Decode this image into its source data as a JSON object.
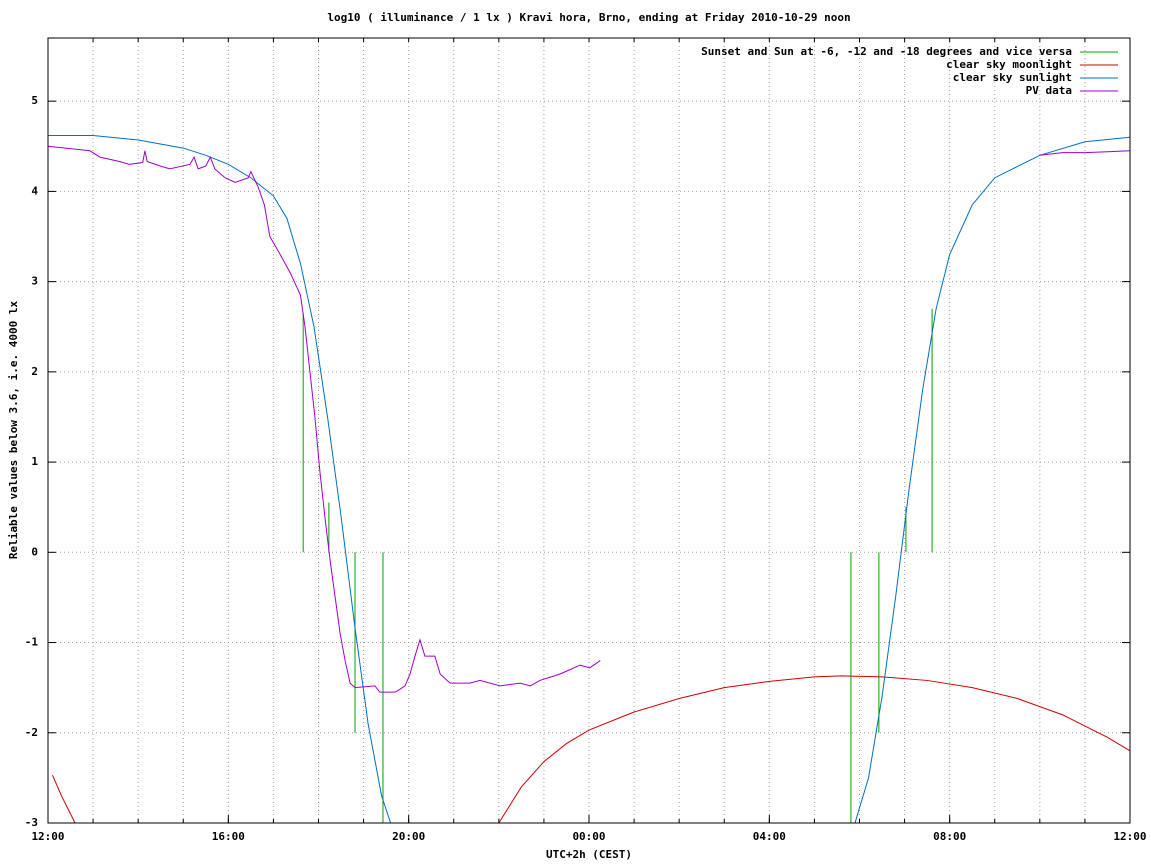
{
  "chart_data": {
    "type": "line",
    "title": "log10 ( illuminance / 1 lx ) Kravi hora, Brno, ending at Friday 2010-10-29 noon",
    "x_label": "UTC+2h (CEST)",
    "y_label": "Reliable values below 3.6, i.e. 4000 lx",
    "xlim": [
      0,
      24
    ],
    "ylim": [
      -3,
      5.7
    ],
    "xticks": [
      {
        "value": 0,
        "label": "12:00"
      },
      {
        "value": 4,
        "label": "16:00"
      },
      {
        "value": 8,
        "label": "20:00"
      },
      {
        "value": 12,
        "label": "00:00"
      },
      {
        "value": 16,
        "label": "04:00"
      },
      {
        "value": 20,
        "label": "08:00"
      },
      {
        "value": 24,
        "label": "12:00"
      }
    ],
    "xminorticks": [
      0,
      1,
      2,
      3,
      4,
      5,
      6,
      7,
      8,
      9,
      10,
      11,
      12,
      13,
      14,
      15,
      16,
      17,
      18,
      19,
      20,
      21,
      22,
      23,
      24
    ],
    "yticks": [
      -3,
      -2,
      -1,
      0,
      1,
      2,
      3,
      4,
      5
    ],
    "grid": true,
    "legend": "top-right",
    "series": [
      {
        "name": "Sunset and Sun at -6, -12 and -18 degrees and vice versa",
        "color": "#00a000",
        "style": "impulses",
        "x": [
          5.66,
          6.23,
          6.81,
          7.43,
          17.81,
          18.43,
          19.03,
          19.61
        ],
        "values": [
          2.65,
          0.55,
          -2.0,
          -3.0,
          -3.0,
          -2.0,
          0.5,
          2.7
        ]
      },
      {
        "name": "clear sky moonlight",
        "color": "#d00000",
        "style": "lines",
        "x": [
          0.1,
          0.3,
          0.6,
          5,
          10.0,
          10.5,
          11.0,
          11.5,
          12,
          13,
          14,
          15,
          16,
          17,
          17.6,
          18.5,
          19.5,
          20.5,
          21.5,
          22.5,
          23.5,
          24
        ],
        "values": [
          -2.47,
          -2.7,
          -3.0,
          null,
          -3.0,
          -2.6,
          -2.32,
          -2.12,
          -1.97,
          -1.77,
          -1.62,
          -1.5,
          -1.43,
          -1.38,
          -1.37,
          -1.38,
          -1.42,
          -1.5,
          -1.62,
          -1.8,
          -2.05,
          -2.2
        ]
      },
      {
        "name": "clear sky sunlight",
        "color": "#0070c0",
        "style": "lines",
        "x": [
          0,
          1,
          2,
          3,
          3.5,
          4,
          4.5,
          5,
          5.3,
          5.6,
          5.9,
          6.2,
          6.5,
          6.8,
          7.1,
          7.4,
          7.6,
          12,
          17.9,
          18.2,
          18.5,
          18.8,
          19.1,
          19.4,
          19.7,
          20,
          20.5,
          21,
          22,
          23,
          24
        ],
        "values": [
          4.62,
          4.62,
          4.57,
          4.48,
          4.4,
          4.3,
          4.15,
          3.95,
          3.7,
          3.2,
          2.5,
          1.5,
          0.4,
          -0.8,
          -1.9,
          -2.7,
          -3.0,
          null,
          -3.0,
          -2.5,
          -1.6,
          -0.5,
          0.7,
          1.8,
          2.7,
          3.3,
          3.85,
          4.15,
          4.4,
          4.55,
          4.6
        ]
      },
      {
        "name": "PV data",
        "color": "#a000d0",
        "style": "lines",
        "x": [
          0,
          0.93,
          1.15,
          1.6,
          1.8,
          2.1,
          2.15,
          2.2,
          2.5,
          2.7,
          3.15,
          3.24,
          3.33,
          3.5,
          3.6,
          3.7,
          3.93,
          4.15,
          4.44,
          4.5,
          4.66,
          4.8,
          4.92,
          5.15,
          5.37,
          5.6,
          5.7,
          5.81,
          5.92,
          6.03,
          6.14,
          6.26,
          6.37,
          6.48,
          6.59,
          6.7,
          6.81,
          7.25,
          7.36,
          7.7,
          7.8,
          7.92,
          8.03,
          8.14,
          8.25,
          8.36,
          8.58,
          8.7,
          8.92,
          9.36,
          9.58,
          10.03,
          10.47,
          10.7,
          10.91,
          11.35,
          11.58,
          11.8,
          12.02,
          12.25,
          17,
          22.0,
          22.5,
          23,
          23.5,
          24
        ],
        "values": [
          4.5,
          4.45,
          4.38,
          4.33,
          4.3,
          4.32,
          4.45,
          4.33,
          4.28,
          4.25,
          4.3,
          4.38,
          4.25,
          4.28,
          4.38,
          4.25,
          4.15,
          4.1,
          4.15,
          4.22,
          4.05,
          3.85,
          3.5,
          3.3,
          3.1,
          2.85,
          2.5,
          2.0,
          1.5,
          0.9,
          0.4,
          -0.1,
          -0.5,
          -0.9,
          -1.2,
          -1.45,
          -1.5,
          -1.48,
          -1.55,
          -1.55,
          -1.52,
          -1.48,
          -1.35,
          -1.15,
          -0.97,
          -1.15,
          -1.15,
          -1.35,
          -1.45,
          -1.45,
          -1.42,
          -1.48,
          -1.45,
          -1.48,
          -1.42,
          -1.35,
          -1.3,
          -1.25,
          -1.28,
          -1.2,
          null,
          4.4,
          4.43,
          4.43,
          4.44,
          4.45
        ]
      }
    ]
  }
}
